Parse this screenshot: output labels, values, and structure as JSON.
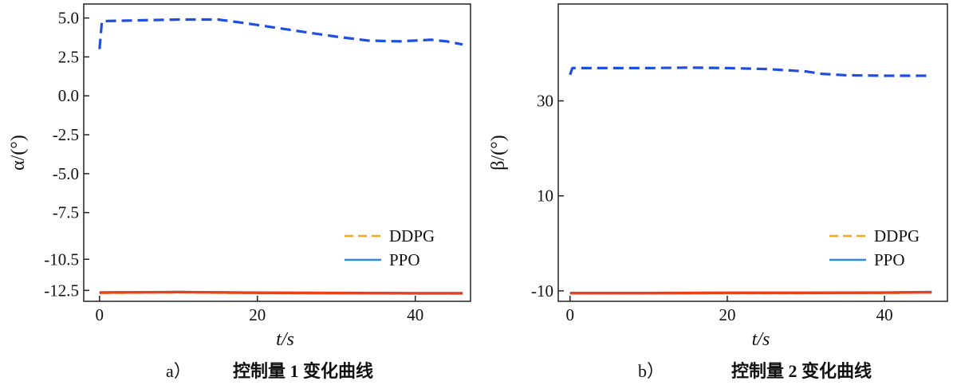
{
  "chart_data": [
    {
      "type": "line",
      "panel_label": "a）",
      "caption": "控制量 1 变化曲线",
      "xlabel": "t/s",
      "ylabel": "α/(°)",
      "xlim": [
        -2,
        47
      ],
      "ylim": [
        -13.2,
        5.9
      ],
      "xticks": [
        0,
        20,
        40
      ],
      "xtick_labels": [
        "0",
        "20",
        "40"
      ],
      "yticks": [
        5.0,
        2.5,
        0.0,
        -2.5,
        -5.0,
        -7.5,
        -10.5,
        -12.5
      ],
      "ytick_labels": [
        "5.0",
        "2.5",
        "0.0",
        "-2.5",
        "-5.0",
        "-7.5",
        "-10.5",
        "-12.5"
      ],
      "legend": [
        "DDPG",
        "PPO"
      ],
      "series": [
        {
          "name": "DDPG",
          "style": "dashed",
          "color": "#f5a623",
          "x": [
            0,
            10,
            20,
            30,
            40,
            46
          ],
          "y": [
            -12.65,
            -12.62,
            -12.66,
            -12.68,
            -12.7,
            -12.7
          ]
        },
        {
          "name": "PPO",
          "style": "solid",
          "color": "#2b8ee6",
          "x": [
            0,
            10,
            20,
            30,
            40,
            46
          ],
          "y": [
            -12.63,
            -12.6,
            -12.64,
            -12.66,
            -12.68,
            -12.68
          ]
        },
        {
          "name": "",
          "style": "solid",
          "color": "#e8411c",
          "x": [
            0,
            10,
            20,
            30,
            40,
            46
          ],
          "y": [
            -12.64,
            -12.61,
            -12.65,
            -12.67,
            -12.69,
            -12.69
          ]
        },
        {
          "name": "",
          "style": "dashed",
          "color": "#1f4fe0",
          "x": [
            0,
            0.3,
            5,
            10,
            15,
            18,
            22,
            26,
            30,
            34,
            38,
            42,
            44,
            46
          ],
          "y": [
            3.0,
            4.8,
            4.85,
            4.9,
            4.9,
            4.7,
            4.4,
            4.1,
            3.8,
            3.55,
            3.5,
            3.6,
            3.5,
            3.3
          ]
        }
      ]
    },
    {
      "type": "line",
      "panel_label": "b）",
      "caption": "控制量 2 变化曲线",
      "xlabel": "t/s",
      "ylabel": "β/(°)",
      "xlim": [
        -1.5,
        48
      ],
      "ylim": [
        -12.2,
        50.4
      ],
      "xticks": [
        0,
        20,
        40
      ],
      "xtick_labels": [
        "0",
        "20",
        "40"
      ],
      "yticks": [
        30,
        10,
        -10
      ],
      "ytick_labels": [
        "30",
        "10",
        "-10"
      ],
      "legend": [
        "DDPG",
        "PPO"
      ],
      "series": [
        {
          "name": "DDPG",
          "style": "dashed",
          "color": "#f5a623",
          "x": [
            0,
            10,
            20,
            30,
            40,
            46
          ],
          "y": [
            -10.5,
            -10.5,
            -10.45,
            -10.45,
            -10.4,
            -10.3
          ]
        },
        {
          "name": "PPO",
          "style": "solid",
          "color": "#2b8ee6",
          "x": [
            0,
            10,
            20,
            30,
            40,
            46
          ],
          "y": [
            -10.45,
            -10.45,
            -10.4,
            -10.4,
            -10.35,
            -10.25
          ]
        },
        {
          "name": "",
          "style": "solid",
          "color": "#e8411c",
          "x": [
            0,
            10,
            20,
            30,
            40,
            46
          ],
          "y": [
            -10.48,
            -10.48,
            -10.42,
            -10.42,
            -10.38,
            -10.28
          ]
        },
        {
          "name": "",
          "style": "dashed",
          "color": "#1f4fe0",
          "x": [
            0,
            0.3,
            5,
            10,
            15,
            20,
            25,
            30,
            32,
            35,
            40,
            46
          ],
          "y": [
            35.5,
            36.9,
            36.9,
            36.9,
            37.0,
            36.9,
            36.7,
            36.2,
            35.7,
            35.4,
            35.3,
            35.3
          ]
        }
      ]
    }
  ]
}
